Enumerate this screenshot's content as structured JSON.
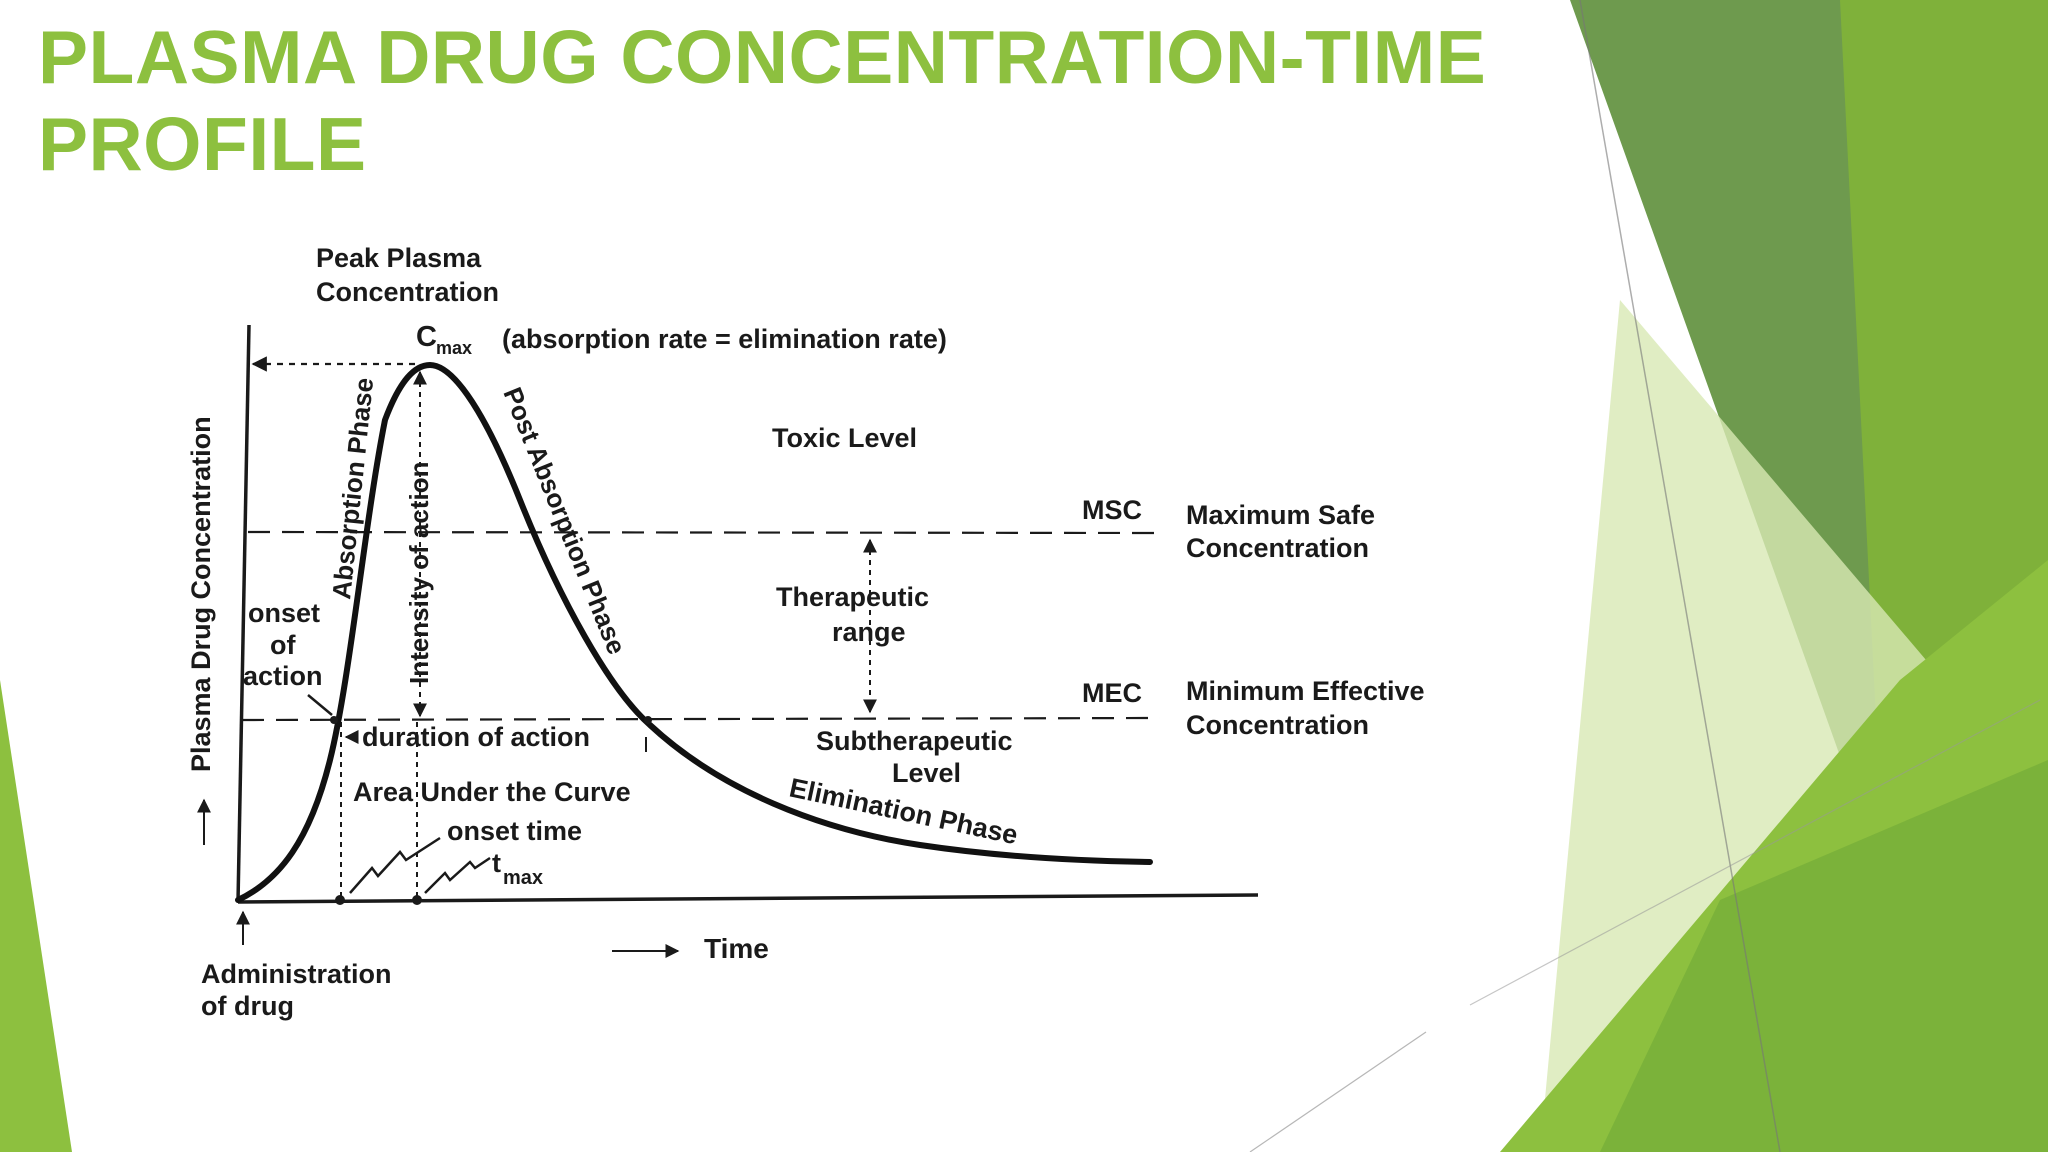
{
  "slide": {
    "title_line1": "PLASMA DRUG CONCENTRATION-TIME",
    "title_line2": "PROFILE",
    "accent_colors": [
      "#8dc03f",
      "#6e9a4e",
      "#7fb13a",
      "#d8e8b4"
    ]
  },
  "diagram": {
    "peak_line1": "Peak Plasma",
    "peak_line2": "Concentration",
    "cmax_c": "C",
    "cmax_sub": "max",
    "cmax_note": "(absorption rate = elimination rate)",
    "toxic_level": "Toxic Level",
    "msc": "MSC",
    "msc_line1": "Maximum Safe",
    "msc_line2": "Concentration",
    "therapeutic_line1": "Therapeutic",
    "therapeutic_line2": "range",
    "mec": "MEC",
    "mec_line1": "Minimum Effective",
    "mec_line2": "Concentration",
    "sub_line1": "Subtherapeutic",
    "sub_line2": "Level",
    "y_axis": "Plasma Drug Concentration",
    "absorption_phase": "Absorption Phase",
    "intensity": "Intensity of action",
    "post_absorption": "Post Absorption Phase",
    "elimination": "Elimination Phase",
    "onset_line1": "onset",
    "onset_line2": "of",
    "onset_line3": "action",
    "duration": "duration of action",
    "auc": "Area Under the Curve",
    "onset_time": "onset time",
    "tmax_t": "t",
    "tmax_sub": "max",
    "time": "Time",
    "admin_line1": "Administration",
    "admin_line2": "of drug"
  }
}
